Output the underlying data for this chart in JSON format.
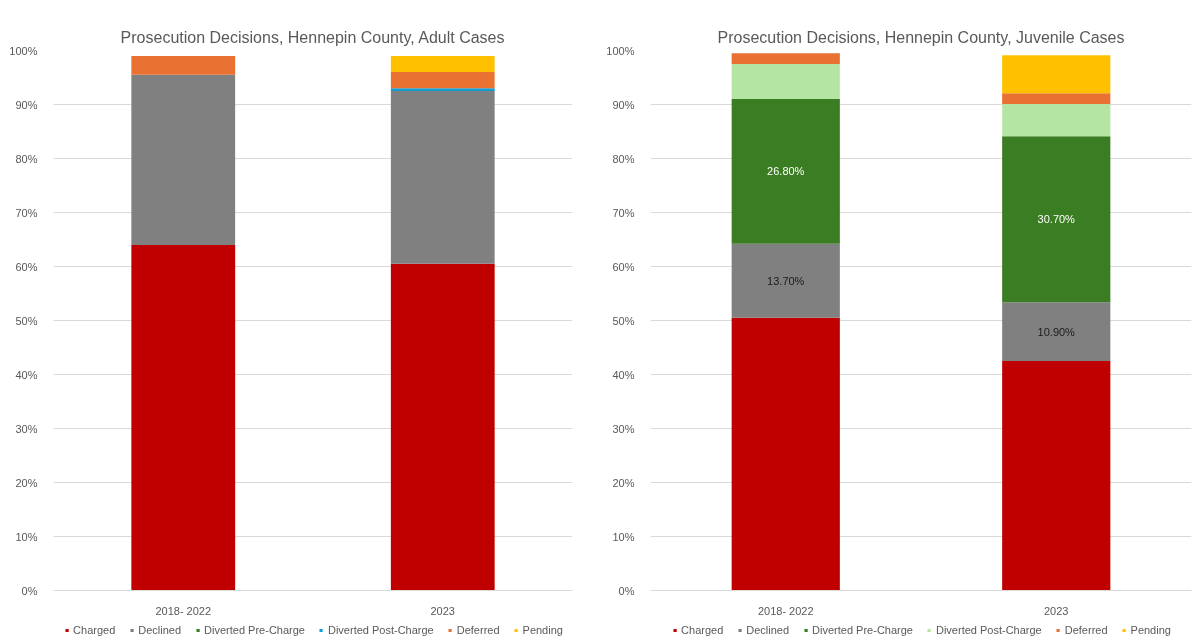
{
  "chart_data": [
    {
      "type": "bar",
      "stacked": true,
      "title": "Prosecution Decisions, Hennepin County, Adult Cases",
      "categories": [
        "2018- 2022",
        "2023"
      ],
      "series": [
        {
          "name": "Charged",
          "color": "#c00000",
          "values": [
            64,
            60.5
          ]
        },
        {
          "name": "Declined",
          "color": "#808080",
          "values": [
            31.5,
            32
          ]
        },
        {
          "name": "Diverted Pre-Charge",
          "color": "#3a7d22",
          "values": [
            null,
            null
          ]
        },
        {
          "name": "Diverted Post-Charge",
          "color": "#0f9ed5",
          "values": [
            null,
            0.5
          ]
        },
        {
          "name": "Deferred",
          "color": "#e97132",
          "values": [
            3.5,
            3
          ]
        },
        {
          "name": "Pending",
          "color": "#ffc000",
          "values": [
            null,
            3
          ]
        }
      ],
      "ylim": [
        0,
        100
      ],
      "yticks": [
        {
          "value": 0,
          "label": "0%"
        },
        {
          "value": 10,
          "label": "10%"
        },
        {
          "value": 20,
          "label": "20%"
        },
        {
          "value": 30,
          "label": "30%"
        },
        {
          "value": 40,
          "label": "40%"
        },
        {
          "value": 50,
          "label": "50%"
        },
        {
          "value": 60,
          "label": "60%"
        },
        {
          "value": 70,
          "label": "70%"
        },
        {
          "value": 80,
          "label": "80%"
        },
        {
          "value": 90,
          "label": "90%"
        },
        {
          "value": 100,
          "label": "100%"
        }
      ],
      "grid": "y",
      "legend": "bottom"
    },
    {
      "type": "bar",
      "stacked": true,
      "title": "Prosecution Decisions, Hennepin County, Juvenile Cases",
      "categories": [
        "2018- 2022",
        "2023"
      ],
      "series": [
        {
          "name": "Charged",
          "color": "#c00000",
          "values": [
            50.5,
            42.5
          ]
        },
        {
          "name": "Declined",
          "color": "#808080",
          "values": [
            13.7,
            10.9
          ],
          "value_labels": [
            "13.70%",
            "10.90%"
          ]
        },
        {
          "name": "Diverted Pre-Charge",
          "color": "#3a7d22",
          "values": [
            26.8,
            30.7
          ],
          "value_labels": [
            "26.80%",
            "30.70%"
          ]
        },
        {
          "name": "Diverted Post-Charge",
          "color": "#b4e5a2",
          "values": [
            6.5,
            6
          ]
        },
        {
          "name": "Deferred",
          "color": "#e97132",
          "values": [
            2,
            2
          ]
        },
        {
          "name": "Pending",
          "color": "#ffc000",
          "values": [
            null,
            7
          ]
        }
      ],
      "ylim": [
        0,
        100
      ],
      "yticks": [
        {
          "value": 0,
          "label": "0%"
        },
        {
          "value": 10,
          "label": "10%"
        },
        {
          "value": 20,
          "label": "20%"
        },
        {
          "value": 30,
          "label": "30%"
        },
        {
          "value": 40,
          "label": "40%"
        },
        {
          "value": 50,
          "label": "50%"
        },
        {
          "value": 60,
          "label": "60%"
        },
        {
          "value": 70,
          "label": "70%"
        },
        {
          "value": 80,
          "label": "80%"
        },
        {
          "value": 90,
          "label": "90%"
        },
        {
          "value": 100,
          "label": "100%"
        }
      ],
      "grid": "y",
      "legend": "bottom"
    }
  ]
}
